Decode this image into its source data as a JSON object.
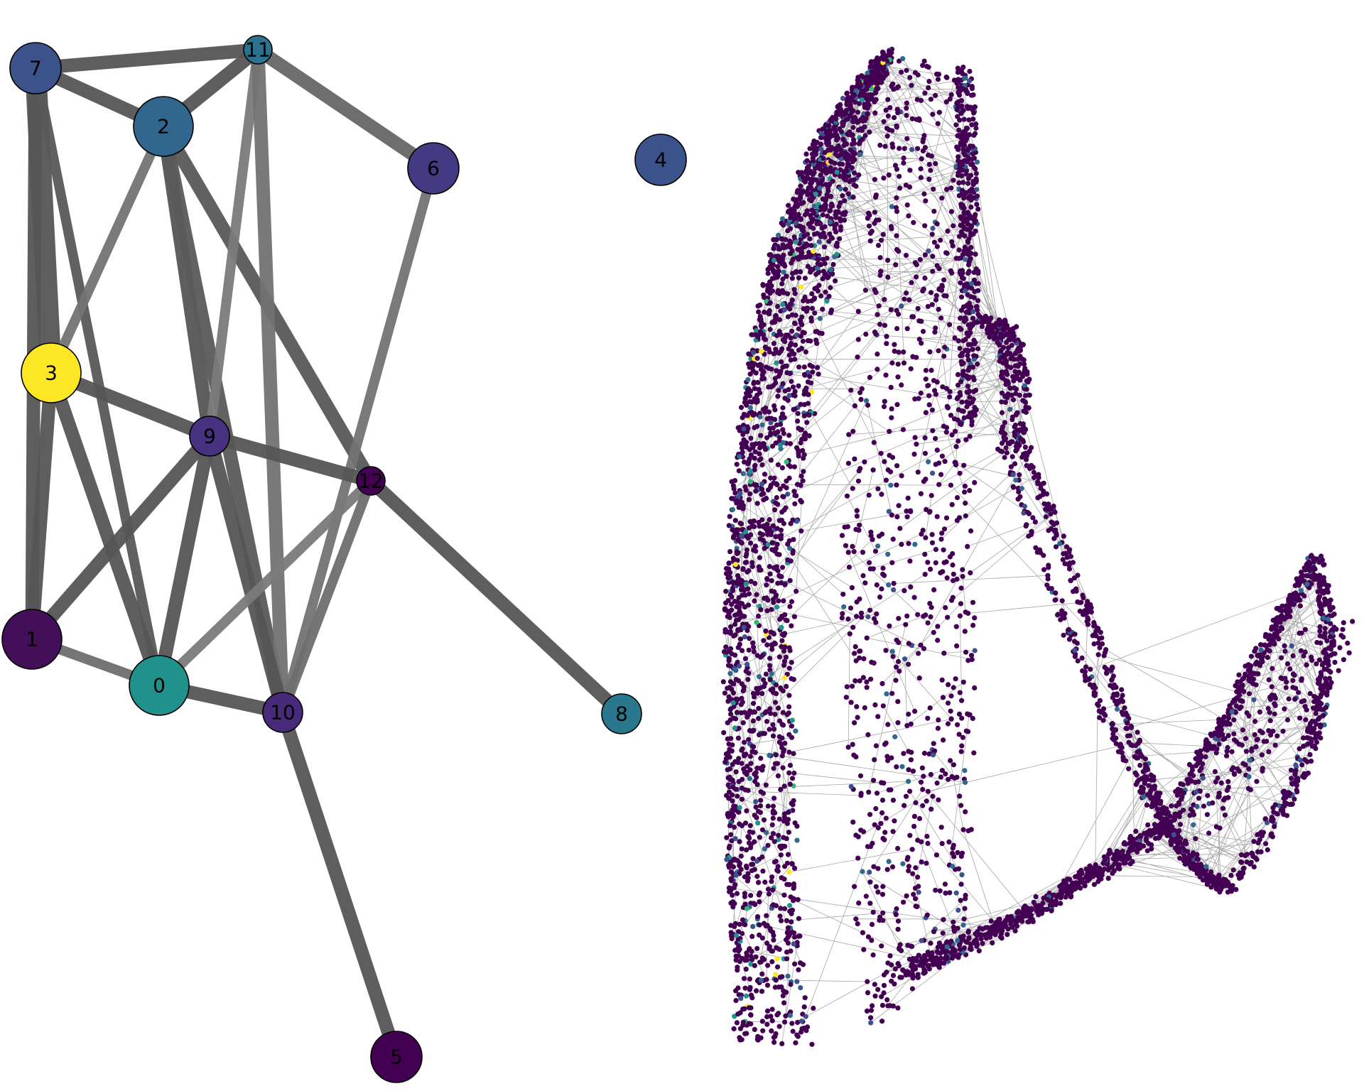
{
  "panels": {
    "left": {
      "type": "abstracted-graph",
      "nodes": [
        {
          "id": "0",
          "label": "0",
          "color": "#21918c",
          "size": "large"
        },
        {
          "id": "1",
          "label": "1",
          "color": "#440f59",
          "size": "large"
        },
        {
          "id": "2",
          "label": "2",
          "color": "#31668e",
          "size": "large"
        },
        {
          "id": "3",
          "label": "3",
          "color": "#fde725",
          "size": "large"
        },
        {
          "id": "4",
          "label": "4",
          "color": "#3b528b",
          "size": "medium"
        },
        {
          "id": "5",
          "label": "5",
          "color": "#440154",
          "size": "medium"
        },
        {
          "id": "6",
          "label": "6",
          "color": "#443983",
          "size": "medium"
        },
        {
          "id": "7",
          "label": "7",
          "color": "#3b528b",
          "size": "medium"
        },
        {
          "id": "8",
          "label": "8",
          "color": "#2a788e",
          "size": "small"
        },
        {
          "id": "9",
          "label": "9",
          "color": "#46327e",
          "size": "small"
        },
        {
          "id": "10",
          "label": "10",
          "color": "#472a7a",
          "size": "small"
        },
        {
          "id": "11",
          "label": "11",
          "color": "#2c728e",
          "size": "tiny"
        },
        {
          "id": "12",
          "label": "12",
          "color": "#440154",
          "size": "tiny"
        }
      ],
      "edges": [
        {
          "source": "7",
          "target": "11",
          "weight": "strong",
          "color": "#555555"
        },
        {
          "source": "7",
          "target": "2",
          "weight": "strong",
          "color": "#555555"
        },
        {
          "source": "7",
          "target": "3",
          "weight": "very-strong",
          "color": "#555555"
        },
        {
          "source": "7",
          "target": "1",
          "weight": "strong",
          "color": "#555555"
        },
        {
          "source": "7",
          "target": "0",
          "weight": "medium",
          "color": "#595959"
        },
        {
          "source": "2",
          "target": "11",
          "weight": "strong",
          "color": "#555555"
        },
        {
          "source": "2",
          "target": "3",
          "weight": "medium",
          "color": "#737373"
        },
        {
          "source": "2",
          "target": "9",
          "weight": "strong",
          "color": "#555555"
        },
        {
          "source": "2",
          "target": "12",
          "weight": "strong",
          "color": "#585858"
        },
        {
          "source": "2",
          "target": "10",
          "weight": "strong",
          "color": "#5a5a5a"
        },
        {
          "source": "11",
          "target": "6",
          "weight": "strong",
          "color": "#666666"
        },
        {
          "source": "11",
          "target": "9",
          "weight": "medium",
          "color": "#7a7a7a"
        },
        {
          "source": "11",
          "target": "10",
          "weight": "strong",
          "color": "#727272"
        },
        {
          "source": "6",
          "target": "10",
          "weight": "medium",
          "color": "#737373"
        },
        {
          "source": "3",
          "target": "1",
          "weight": "strong",
          "color": "#555555"
        },
        {
          "source": "3",
          "target": "9",
          "weight": "strong",
          "color": "#555555"
        },
        {
          "source": "3",
          "target": "0",
          "weight": "strong",
          "color": "#555555"
        },
        {
          "source": "9",
          "target": "12",
          "weight": "strong",
          "color": "#555555"
        },
        {
          "source": "9",
          "target": "1",
          "weight": "strong",
          "color": "#555555"
        },
        {
          "source": "9",
          "target": "0",
          "weight": "strong",
          "color": "#555555"
        },
        {
          "source": "9",
          "target": "10",
          "weight": "strong",
          "color": "#555555"
        },
        {
          "source": "12",
          "target": "0",
          "weight": "medium",
          "color": "#7a7a7a"
        },
        {
          "source": "12",
          "target": "10",
          "weight": "medium",
          "color": "#6e6e6e"
        },
        {
          "source": "12",
          "target": "8",
          "weight": "strong",
          "color": "#555555"
        },
        {
          "source": "1",
          "target": "0",
          "weight": "medium",
          "color": "#6e6e6e"
        },
        {
          "source": "0",
          "target": "10",
          "weight": "strong",
          "color": "#555555"
        },
        {
          "source": "10",
          "target": "5",
          "weight": "strong",
          "color": "#555555"
        }
      ]
    },
    "right": {
      "type": "single-cell-graph",
      "edge_color": "#888888",
      "point_base_color": "#440154",
      "point_accent_colors": [
        "#3b528b",
        "#31688e",
        "#21918c",
        "#35b779",
        "#fde725"
      ]
    }
  }
}
